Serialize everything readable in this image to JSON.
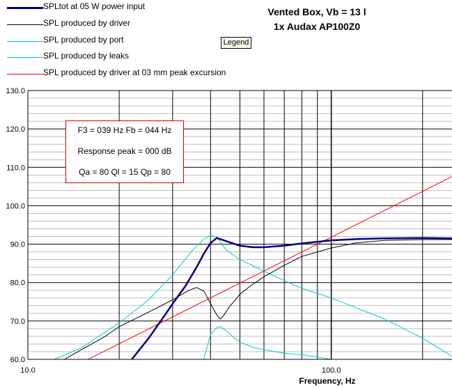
{
  "chart_data": {
    "type": "line",
    "title": [
      "Vented Box, Vb = 13 l",
      "1x Audax AP100Z0"
    ],
    "xlabel": "Frequency, Hz",
    "ylabel": "",
    "xscale": "log",
    "xlim": [
      10,
      250
    ],
    "ylim": [
      60,
      130
    ],
    "x_tick_labels": [
      "10.0",
      "100.0"
    ],
    "y_tick_labels": [
      "130.0",
      "120.0",
      "110.0",
      "100.0",
      "90.0",
      "80.0",
      "70.0",
      "60.0"
    ],
    "grid": true,
    "legend_position": "top-left",
    "series": [
      {
        "name": "SPLtot at 05 W power input",
        "color": "#000080",
        "width": 2.5,
        "x": [
          22,
          25,
          28,
          30,
          33,
          36,
          38,
          40,
          42,
          45,
          50,
          55,
          60,
          70,
          80,
          100,
          120,
          150,
          200,
          250
        ],
        "y": [
          60,
          65.5,
          71,
          74.5,
          79,
          84,
          87.5,
          90.3,
          91.6,
          90.8,
          89.6,
          89.2,
          89.2,
          89.6,
          90.2,
          91,
          91.3,
          91.5,
          91.6,
          91.5
        ]
      },
      {
        "name": "SPL produced by driver",
        "color": "#000000",
        "width": 1,
        "x": [
          13.2,
          15,
          18,
          20,
          25,
          30,
          34,
          36,
          38,
          40,
          42,
          43,
          44,
          46,
          50,
          55,
          60,
          70,
          80,
          100,
          120,
          150,
          200,
          250
        ],
        "y": [
          60,
          62.5,
          66,
          68.5,
          72.3,
          75.5,
          78,
          78.7,
          77.8,
          74.5,
          71.5,
          70.5,
          71.2,
          73.5,
          77,
          79.5,
          81.5,
          84.5,
          86.8,
          89,
          90.3,
          91,
          91.2,
          91.2
        ]
      },
      {
        "name": "SPL produced by port",
        "color": "#00cccc",
        "width": 1,
        "x": [
          38,
          40,
          42,
          43,
          45,
          48,
          50,
          55,
          60,
          70,
          80,
          90,
          100
        ],
        "y": [
          60,
          66.5,
          68.3,
          68.5,
          67.5,
          65.5,
          64.5,
          63.2,
          62.5,
          61.6,
          61.2,
          60.6,
          60
        ]
      },
      {
        "name": "SPL produced by leaks",
        "color": "#00cccc",
        "width": 1,
        "x": [
          12.2,
          15,
          20,
          25,
          30,
          35,
          38,
          40,
          42,
          45,
          50,
          60,
          70,
          80,
          100,
          150,
          200,
          250
        ],
        "y": [
          60,
          63,
          69.5,
          75.5,
          82,
          88.5,
          91.3,
          92.3,
          91.8,
          88.5,
          86,
          83,
          80.5,
          78.5,
          76,
          70.5,
          65.5,
          60.8
        ]
      },
      {
        "name": "SPL produced by driver at 03 mm peak excursion",
        "color": "#ff0000",
        "width": 1,
        "x": [
          15.8,
          250
        ],
        "y": [
          60,
          107.6
        ]
      }
    ],
    "annotation": {
      "F3": "039 Hz",
      "Fb": "044 Hz",
      "response_peak": "000 dB",
      "Qa": "80",
      "Ql": "15",
      "Qp": "80"
    }
  },
  "ui": {
    "legend_button_label": "Legend",
    "info_lines": [
      "F3 = 039 Hz  Fb = 044 Hz",
      "Response peak = 000 dB",
      "Qa = 80  Ql = 15  Qp = 80"
    ]
  }
}
